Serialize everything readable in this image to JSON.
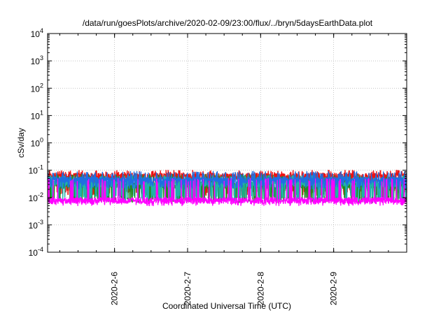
{
  "chart_data": {
    "type": "line",
    "title": "/data/run/goesPlots/archive/2020-02-09/23:00/flux/../bryn/5daysEarthData.plot",
    "xlabel": "Coordinated Universal Time (UTC)",
    "ylabel": "cSv/day",
    "yscale": "log",
    "ylim": [
      0.0001,
      10000
    ],
    "xlim": [
      "2020-02-05T02:00",
      "2020-02-10T00:00"
    ],
    "yticks": [
      {
        "base": "10",
        "exp": "-4",
        "value": 0.0001
      },
      {
        "base": "10",
        "exp": "-3",
        "value": 0.001
      },
      {
        "base": "10",
        "exp": "-2",
        "value": 0.01
      },
      {
        "base": "10",
        "exp": "-1",
        "value": 0.1
      },
      {
        "base": "10",
        "exp": "0",
        "value": 1
      },
      {
        "base": "10",
        "exp": "1",
        "value": 10
      },
      {
        "base": "10",
        "exp": "2",
        "value": 100
      },
      {
        "base": "10",
        "exp": "3",
        "value": 1000
      },
      {
        "base": "10",
        "exp": "4",
        "value": 10000
      }
    ],
    "xticks": [
      {
        "label": "2020-2-6",
        "date": "2020-02-06T00:00"
      },
      {
        "label": "2020-2-7",
        "date": "2020-02-07T00:00"
      },
      {
        "label": "2020-2-8",
        "date": "2020-02-08T00:00"
      },
      {
        "label": "2020-2-9",
        "date": "2020-02-09T00:00"
      }
    ],
    "grid": true,
    "legend": "none",
    "series": [
      {
        "color": "#ee1111",
        "min": 0.012,
        "max": 0.1,
        "base": 0.062
      },
      {
        "color": "#228b22",
        "min": 0.0065,
        "max": 0.07,
        "base": 0.028
      },
      {
        "color": "#20b2aa",
        "min": 0.0075,
        "max": 0.065,
        "base": 0.033
      },
      {
        "color": "#1f6fe0",
        "min": 0.02,
        "max": 0.09,
        "base": 0.045
      },
      {
        "color": "#ff00ff",
        "min": 0.005,
        "max": 0.05,
        "base": 0.008
      }
    ]
  }
}
